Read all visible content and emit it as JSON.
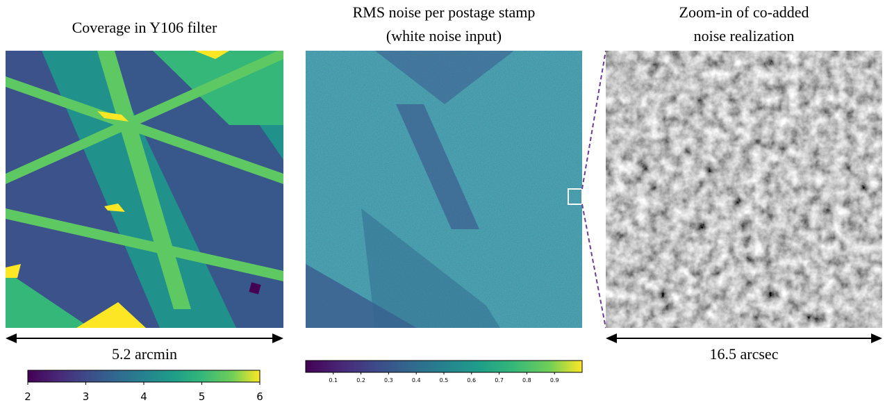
{
  "panels": [
    {
      "title_lines": [
        "Coverage in Y106 filter"
      ],
      "scale_label": "5.2 arcmin"
    },
    {
      "title_lines": [
        "RMS noise per postage stamp",
        "(white noise input)"
      ]
    },
    {
      "title_lines": [
        "Zoom-in of co-added",
        "noise realization"
      ],
      "scale_label": "16.5 arcsec"
    }
  ],
  "colorbars": [
    {
      "lim": [
        2,
        6
      ],
      "ticks": [
        2,
        3,
        4,
        5,
        6
      ]
    },
    {
      "lim": [
        0,
        1
      ],
      "ticks": [
        0.1,
        0.2,
        0.3,
        0.4,
        0.5,
        0.6,
        0.7,
        0.8,
        0.9
      ]
    }
  ]
}
